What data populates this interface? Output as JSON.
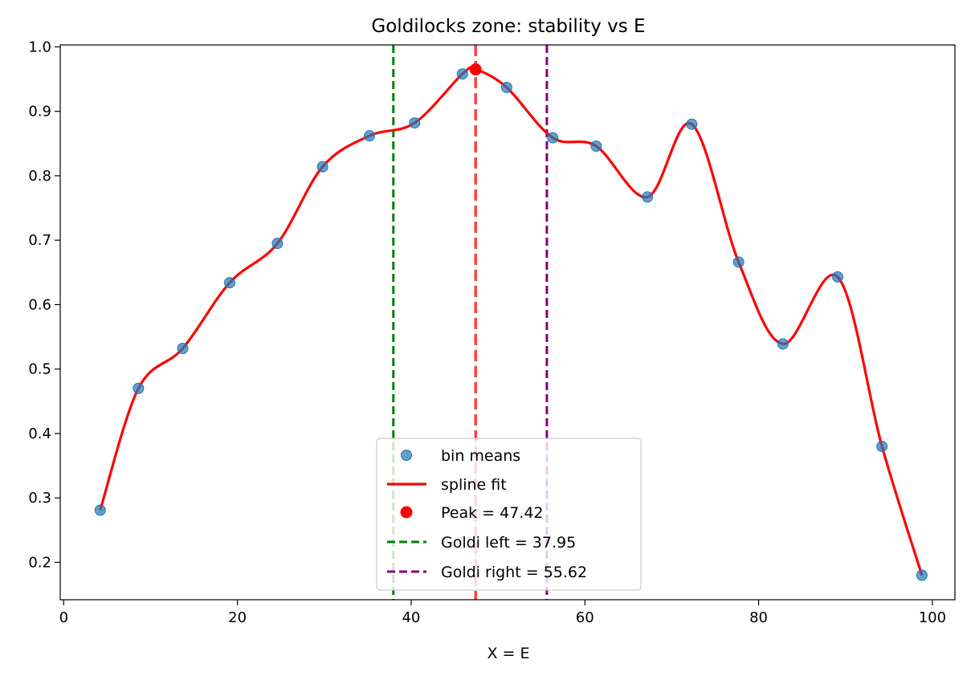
{
  "chart_data": {
    "type": "scatter",
    "title": "Goldilocks zone: stability vs E",
    "xlabel": "X = E",
    "ylabel": "",
    "xlim": [
      -0.4,
      102.6
    ],
    "ylim": [
      0.142,
      1.003
    ],
    "xticks": [
      0,
      20,
      40,
      60,
      80,
      100
    ],
    "yticks": [
      0.2,
      0.3,
      0.4,
      0.5,
      0.6,
      0.7,
      0.8,
      0.9,
      1.0
    ],
    "xtick_labels": [
      "0",
      "20",
      "40",
      "60",
      "80",
      "100"
    ],
    "ytick_labels": [
      "0.2",
      "0.3",
      "0.4",
      "0.5",
      "0.6",
      "0.7",
      "0.8",
      "0.9",
      "1.0"
    ],
    "series": [
      {
        "name": "bin means",
        "kind": "scatter",
        "color": "#1f77b4",
        "x": [
          4.2,
          8.6,
          13.7,
          19.1,
          24.6,
          29.8,
          35.2,
          40.4,
          45.9,
          51.0,
          56.3,
          61.3,
          67.2,
          72.3,
          77.7,
          82.8,
          89.1,
          94.2,
          98.8
        ],
        "y": [
          0.281,
          0.47,
          0.532,
          0.634,
          0.695,
          0.814,
          0.862,
          0.882,
          0.958,
          0.937,
          0.859,
          0.846,
          0.767,
          0.88,
          0.666,
          0.539,
          0.643,
          0.38,
          0.18
        ]
      },
      {
        "name": "spline fit",
        "kind": "line",
        "color": "#ff0000"
      },
      {
        "name": "Peak = 47.42",
        "kind": "point",
        "color": "#ff0000",
        "x": [
          47.42
        ],
        "y": [
          0.965
        ]
      }
    ],
    "vlines": [
      {
        "name": "Peak",
        "x": 47.42,
        "color": "#ff2020",
        "in_legend": false
      },
      {
        "name": "Goldi left = 37.95",
        "x": 37.95,
        "color": "#008000",
        "in_legend": true
      },
      {
        "name": "Goldi right = 55.62",
        "x": 55.62,
        "color": "#800080",
        "in_legend": true
      }
    ],
    "legend": {
      "position": "lower-center",
      "entries": [
        "bin means",
        "spline fit",
        "Peak = 47.42",
        "Goldi left = 37.95",
        "Goldi right = 55.62"
      ]
    }
  }
}
